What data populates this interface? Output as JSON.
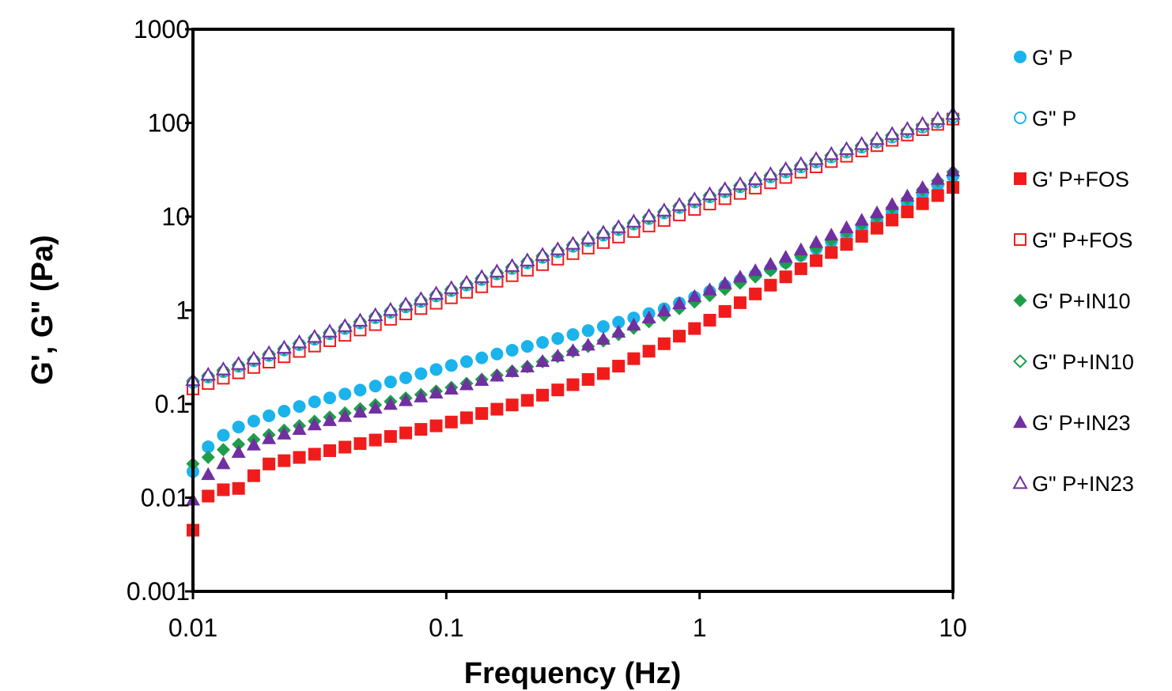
{
  "chart_data": {
    "type": "scatter",
    "title": "",
    "xlabel": "Frequency (Hz)",
    "ylabel": "G', G\" (Pa)",
    "xscale": "log",
    "yscale": "log",
    "xlim": [
      0.01,
      10
    ],
    "ylim": [
      0.001,
      1000
    ],
    "x_ticks": [
      "0.01",
      "0.1",
      "1",
      "10"
    ],
    "y_ticks": [
      "0.001",
      "0.01",
      "0.1",
      "1",
      "10",
      "100",
      "1000"
    ],
    "grid": false,
    "legend_position": "right",
    "series": [
      {
        "name": "G' P",
        "marker": "circle",
        "filled": true,
        "color": "#1ab3ec",
        "anchors": [
          [
            0.01,
            0.019
          ],
          [
            0.0112,
            0.033
          ],
          [
            0.0126,
            0.043
          ],
          [
            0.0141,
            0.052
          ],
          [
            0.0158,
            0.06
          ],
          [
            0.02,
            0.075
          ],
          [
            0.03,
            0.105
          ],
          [
            0.05,
            0.15
          ],
          [
            0.1,
            0.25
          ],
          [
            0.2,
            0.4
          ],
          [
            0.4,
            0.65
          ],
          [
            0.7,
            1.0
          ],
          [
            1,
            1.45
          ],
          [
            2,
            2.9
          ],
          [
            5,
            9.0
          ],
          [
            10,
            27
          ]
        ]
      },
      {
        "name": "G\" P",
        "marker": "circle",
        "filled": false,
        "color": "#1ab3ec",
        "anchors": [
          [
            0.01,
            0.17
          ],
          [
            0.1,
            1.55
          ],
          [
            1,
            15
          ],
          [
            10,
            115
          ]
        ]
      },
      {
        "name": "G' P+FOS",
        "marker": "square",
        "filled": true,
        "color": "#f01c1c",
        "anchors": [
          [
            0.01,
            0.0045
          ],
          [
            0.0112,
            0.0103
          ],
          [
            0.0126,
            0.0108
          ],
          [
            0.0141,
            0.0145
          ],
          [
            0.0158,
            0.0115
          ],
          [
            0.0178,
            0.019
          ],
          [
            0.02,
            0.023
          ],
          [
            0.03,
            0.029
          ],
          [
            0.05,
            0.04
          ],
          [
            0.1,
            0.062
          ],
          [
            0.2,
            0.105
          ],
          [
            0.4,
            0.2
          ],
          [
            0.7,
            0.42
          ],
          [
            1,
            0.68
          ],
          [
            2,
            2.0
          ],
          [
            5,
            7.5
          ],
          [
            10,
            20.5
          ]
        ]
      },
      {
        "name": "G\" P+FOS",
        "marker": "square",
        "filled": false,
        "color": "#f01c1c",
        "anchors": [
          [
            0.01,
            0.145
          ],
          [
            0.1,
            1.3
          ],
          [
            1,
            12.5
          ],
          [
            10,
            110
          ]
        ]
      },
      {
        "name": "G' P+IN10",
        "marker": "diamond",
        "filled": true,
        "color": "#1e9e4a",
        "anchors": [
          [
            0.01,
            0.023
          ],
          [
            0.0112,
            0.026
          ],
          [
            0.0126,
            0.031
          ],
          [
            0.0141,
            0.035
          ],
          [
            0.02,
            0.047
          ],
          [
            0.03,
            0.065
          ],
          [
            0.05,
            0.095
          ],
          [
            0.1,
            0.145
          ],
          [
            0.2,
            0.24
          ],
          [
            0.4,
            0.45
          ],
          [
            0.7,
            0.85
          ],
          [
            1,
            1.3
          ],
          [
            2,
            2.8
          ],
          [
            5,
            10
          ],
          [
            10,
            30
          ]
        ]
      },
      {
        "name": "G\" P+IN10",
        "marker": "diamond",
        "filled": false,
        "color": "#1e9e4a",
        "anchors": [
          [
            0.01,
            0.175
          ],
          [
            0.1,
            1.6
          ],
          [
            1,
            15.5
          ],
          [
            10,
            120
          ]
        ]
      },
      {
        "name": "G' P+IN23",
        "marker": "triangle",
        "filled": true,
        "color": "#7030a0",
        "anchors": [
          [
            0.01,
            0.0095
          ],
          [
            0.0112,
            0.017
          ],
          [
            0.0126,
            0.021
          ],
          [
            0.0141,
            0.027
          ],
          [
            0.0158,
            0.033
          ],
          [
            0.02,
            0.043
          ],
          [
            0.03,
            0.06
          ],
          [
            0.05,
            0.088
          ],
          [
            0.1,
            0.14
          ],
          [
            0.2,
            0.24
          ],
          [
            0.4,
            0.47
          ],
          [
            0.7,
            0.95
          ],
          [
            1,
            1.5
          ],
          [
            2,
            3.3
          ],
          [
            5,
            11
          ],
          [
            10,
            31
          ]
        ]
      },
      {
        "name": "G\" P+IN23",
        "marker": "triangle",
        "filled": false,
        "color": "#7030a0",
        "anchors": [
          [
            0.01,
            0.18
          ],
          [
            0.1,
            1.65
          ],
          [
            1,
            16
          ],
          [
            10,
            125
          ]
        ]
      }
    ]
  }
}
